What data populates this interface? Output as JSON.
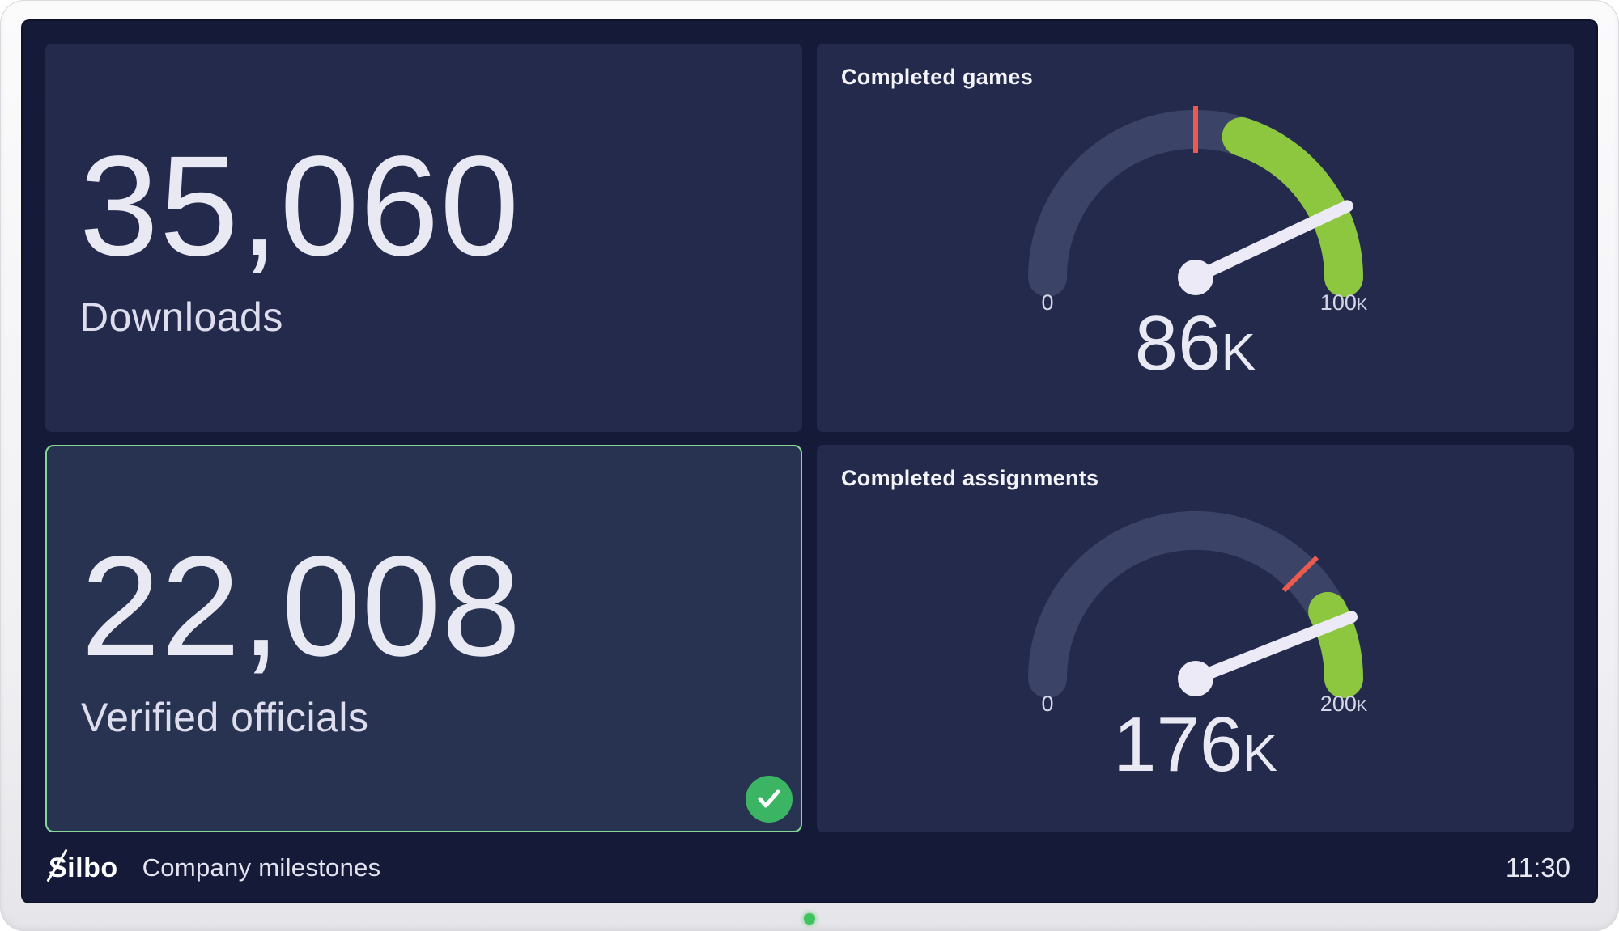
{
  "footer": {
    "brand": "Silbo",
    "dashboard_title": "Company milestones",
    "time": "11:30"
  },
  "chart_data": [
    {
      "type": "number",
      "label": "Downloads",
      "value": 35060,
      "display_value": "35,060"
    },
    {
      "type": "number",
      "label": "Verified officials",
      "value": 22008,
      "display_value": "22,008",
      "goal_met": true
    },
    {
      "type": "gauge",
      "title": "Completed games",
      "min": 0,
      "max": 100000,
      "value": 86000,
      "display_value": "86",
      "display_suffix": "K",
      "min_label": "0",
      "max_label": "100",
      "max_label_suffix": "K",
      "threshold": 50000,
      "green_zone": [
        60000,
        100000
      ]
    },
    {
      "type": "gauge",
      "title": "Completed assignments",
      "min": 0,
      "max": 200000,
      "value": 176000,
      "display_value": "176",
      "display_suffix": "K",
      "min_label": "0",
      "max_label": "200",
      "max_label_suffix": "K",
      "threshold": 150000,
      "green_zone": [
        170000,
        200000
      ]
    }
  ],
  "colors": {
    "screen_bg": "#151a38",
    "panel_bg": "#232a4c",
    "goal_panel_bg": "#273350",
    "goal_border": "#84d894",
    "badge_green": "#3bb563",
    "gauge_track": "#3b4366",
    "green": "#8dc63f",
    "red": "#ee5a4e",
    "needle": "#eceaf6",
    "axis_label": "#d6d7e6",
    "text": "#e9e9f4",
    "led": "#3fc35c"
  }
}
